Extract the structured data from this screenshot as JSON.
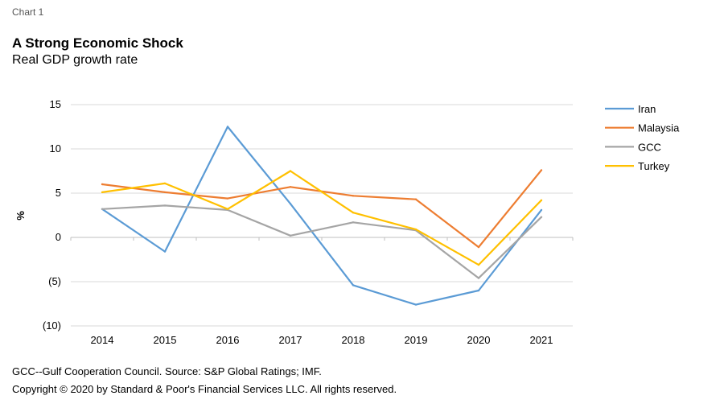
{
  "header": {
    "label": "Chart 1",
    "title": "A Strong Economic Shock",
    "subtitle": "Real GDP growth rate"
  },
  "footer": {
    "note": "GCC--Gulf Cooperation Council. Source: S&P Global Ratings; IMF.",
    "copyright": "Copyright © 2020 by Standard & Poor's Financial Services LLC. All rights reserved."
  },
  "chart_data": {
    "type": "line",
    "title": "A Strong Economic Shock",
    "subtitle": "Real GDP growth rate",
    "xlabel": "",
    "ylabel": "%",
    "ylim": [
      -10,
      15
    ],
    "yticks": [
      15,
      10,
      5,
      0,
      -5,
      -10
    ],
    "ytick_labels": [
      "15",
      "10",
      "5",
      "0",
      "(5)",
      "(10)"
    ],
    "categories": [
      "2014",
      "2015",
      "2016",
      "2017",
      "2018",
      "2019",
      "2020",
      "2021"
    ],
    "legend_position": "right",
    "series": [
      {
        "name": "Iran",
        "color": "#5b9bd5",
        "values": [
          3.2,
          -1.6,
          12.5,
          3.8,
          -5.4,
          -7.6,
          -6.0,
          3.1
        ]
      },
      {
        "name": "Malaysia",
        "color": "#ed7d31",
        "values": [
          6.0,
          5.1,
          4.4,
          5.7,
          4.7,
          4.3,
          -1.1,
          7.6
        ]
      },
      {
        "name": "GCC",
        "color": "#a5a5a5",
        "values": [
          3.2,
          3.6,
          3.1,
          0.2,
          1.7,
          0.8,
          -4.6,
          2.3
        ]
      },
      {
        "name": "Turkey",
        "color": "#ffc000",
        "values": [
          5.1,
          6.1,
          3.2,
          7.5,
          2.8,
          0.9,
          -3.1,
          4.2
        ]
      }
    ]
  }
}
